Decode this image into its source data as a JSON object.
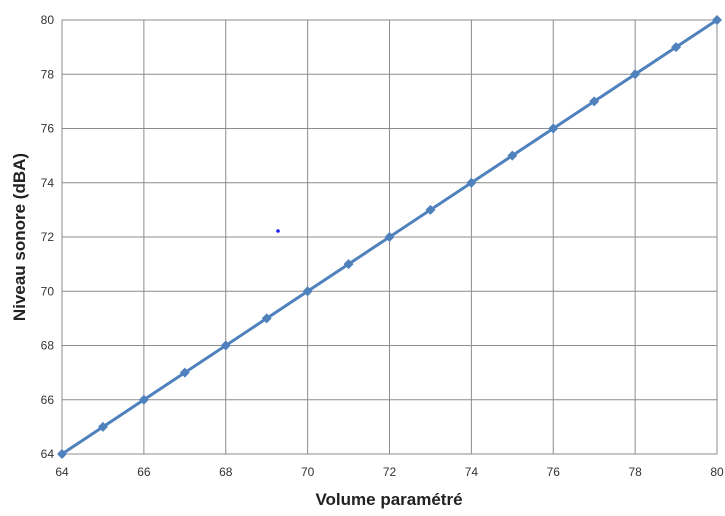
{
  "chart_data": {
    "type": "scatter",
    "title": "",
    "xlabel": "Volume paramétré",
    "ylabel": "Niveau sonore (dBA)",
    "xlim": [
      64,
      80
    ],
    "ylim": [
      64,
      80
    ],
    "xticks": [
      64,
      66,
      68,
      70,
      72,
      74,
      76,
      78,
      80
    ],
    "yticks": [
      64,
      66,
      68,
      70,
      72,
      74,
      76,
      78,
      80
    ],
    "grid": true,
    "legend": "none",
    "series": [
      {
        "x": [
          64,
          65,
          66,
          67,
          68,
          69,
          70,
          71,
          72,
          73,
          74,
          75,
          76,
          77,
          78,
          79,
          80
        ],
        "y": [
          64,
          65,
          66,
          67,
          68,
          69,
          70,
          71,
          72,
          73,
          74,
          75,
          76,
          77,
          78,
          79,
          80
        ],
        "color": "#4f81bd",
        "marker": "diamond",
        "trendline": {
          "x": [
            64,
            80
          ],
          "y": [
            64,
            80
          ]
        }
      }
    ]
  }
}
